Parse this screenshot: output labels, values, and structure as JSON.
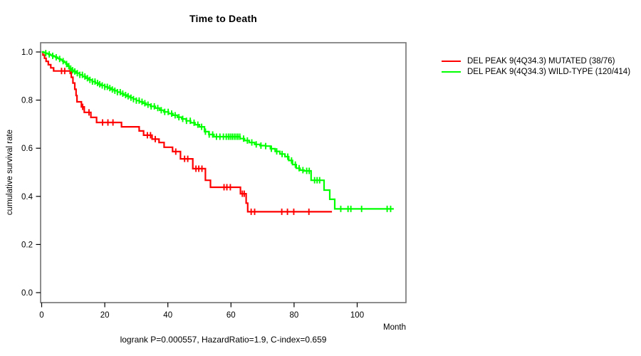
{
  "chart_data": {
    "type": "line",
    "subtype": "kaplan-meier-step",
    "title": "Time to Death",
    "xlabel": "Month",
    "ylabel": "cumulative survival rate",
    "footer": "logrank P=0.000557, HazardRatio=1.9, C-index=0.659",
    "xticks": [
      0,
      20,
      40,
      60,
      80,
      100
    ],
    "ytick_labels": [
      "0.0",
      "0.2",
      "0.4",
      "0.6",
      "0.8",
      "1.0"
    ],
    "yticks": [
      0.0,
      0.2,
      0.4,
      0.6,
      0.8,
      1.0
    ],
    "xlim": [
      0,
      115.5
    ],
    "ylim": [
      -0.04,
      1.04
    ],
    "grid": false,
    "legend_position": "right-outside",
    "axis_color": "#7a7a7a",
    "tick_color": "#000000",
    "series": [
      {
        "name": "DEL PEAK 9(4Q34.3) MUTATED (38/76)",
        "color": "#ff0000",
        "end_time": 92,
        "steps": [
          [
            0,
            1.0
          ],
          [
            0.4,
            0.987
          ],
          [
            0.9,
            0.974
          ],
          [
            1.4,
            0.961
          ],
          [
            2.1,
            0.947
          ],
          [
            2.9,
            0.934
          ],
          [
            3.8,
            0.921
          ],
          [
            9.4,
            0.895
          ],
          [
            9.9,
            0.871
          ],
          [
            10.5,
            0.845
          ],
          [
            10.9,
            0.819
          ],
          [
            11.2,
            0.793
          ],
          [
            12.6,
            0.772
          ],
          [
            13.5,
            0.749
          ],
          [
            15.6,
            0.728
          ],
          [
            17.4,
            0.707
          ],
          [
            25.3,
            0.689
          ],
          [
            30.9,
            0.672
          ],
          [
            32.3,
            0.654
          ],
          [
            35.0,
            0.638
          ],
          [
            37.2,
            0.624
          ],
          [
            38.8,
            0.604
          ],
          [
            41.5,
            0.586
          ],
          [
            44.0,
            0.556
          ],
          [
            47.9,
            0.515
          ],
          [
            51.9,
            0.467
          ],
          [
            53.5,
            0.438
          ],
          [
            63.0,
            0.411
          ],
          [
            64.8,
            0.372
          ],
          [
            65.3,
            0.336
          ]
        ],
        "censor_times": [
          6.3,
          7.3,
          9.0,
          13.0,
          15.0,
          19.3,
          21.0,
          22.6,
          33.5,
          34.5,
          36.0,
          42.5,
          45.3,
          46.3,
          48.9,
          49.8,
          50.8,
          57.8,
          58.7,
          59.8,
          63.6,
          64.2,
          66.4,
          67.5,
          76.1,
          77.9,
          79.9,
          84.7
        ]
      },
      {
        "name": "DEL PEAK 9(4Q34.3) WILD-TYPE (120/414)",
        "color": "#00ff00",
        "end_time": 111.6,
        "steps": [
          [
            0,
            1.0
          ],
          [
            0.6,
            0.998
          ],
          [
            1.1,
            0.995
          ],
          [
            1.7,
            0.993
          ],
          [
            2.2,
            0.99
          ],
          [
            2.8,
            0.987
          ],
          [
            3.3,
            0.984
          ],
          [
            3.9,
            0.981
          ],
          [
            4.4,
            0.978
          ],
          [
            5.0,
            0.974
          ],
          [
            5.5,
            0.971
          ],
          [
            6.1,
            0.967
          ],
          [
            6.6,
            0.962
          ],
          [
            7.2,
            0.957
          ],
          [
            7.7,
            0.95
          ],
          [
            8.2,
            0.941
          ],
          [
            8.7,
            0.931
          ],
          [
            9.4,
            0.924
          ],
          [
            10.0,
            0.919
          ],
          [
            11.0,
            0.912
          ],
          [
            12.0,
            0.905
          ],
          [
            13.0,
            0.898
          ],
          [
            14.0,
            0.891
          ],
          [
            15.0,
            0.884
          ],
          [
            16.0,
            0.877
          ],
          [
            17.0,
            0.871
          ],
          [
            18.0,
            0.866
          ],
          [
            18.9,
            0.861
          ],
          [
            20.0,
            0.855
          ],
          [
            21.0,
            0.85
          ],
          [
            22.0,
            0.844
          ],
          [
            23.0,
            0.839
          ],
          [
            24.0,
            0.833
          ],
          [
            25.0,
            0.827
          ],
          [
            26.0,
            0.821
          ],
          [
            27.0,
            0.816
          ],
          [
            28.0,
            0.81
          ],
          [
            29.0,
            0.804
          ],
          [
            30.0,
            0.798
          ],
          [
            31.0,
            0.793
          ],
          [
            32.1,
            0.787
          ],
          [
            33.1,
            0.781
          ],
          [
            34.5,
            0.774
          ],
          [
            36.0,
            0.767
          ],
          [
            37.4,
            0.758
          ],
          [
            38.7,
            0.751
          ],
          [
            40.2,
            0.744
          ],
          [
            41.6,
            0.737
          ],
          [
            43.0,
            0.729
          ],
          [
            44.4,
            0.722
          ],
          [
            45.8,
            0.714
          ],
          [
            47.2,
            0.706
          ],
          [
            48.6,
            0.698
          ],
          [
            50.0,
            0.689
          ],
          [
            51.6,
            0.669
          ],
          [
            53.0,
            0.657
          ],
          [
            54.6,
            0.648
          ],
          [
            62.9,
            0.64
          ],
          [
            64.3,
            0.632
          ],
          [
            65.8,
            0.624
          ],
          [
            67.5,
            0.616
          ],
          [
            69.2,
            0.611
          ],
          [
            71.0,
            0.609
          ],
          [
            72.5,
            0.598
          ],
          [
            74.0,
            0.587
          ],
          [
            75.5,
            0.576
          ],
          [
            77.1,
            0.565
          ],
          [
            78.3,
            0.549
          ],
          [
            79.5,
            0.532
          ],
          [
            80.7,
            0.517
          ],
          [
            81.9,
            0.509
          ],
          [
            83.2,
            0.506
          ],
          [
            85.4,
            0.467
          ],
          [
            89.5,
            0.426
          ],
          [
            91.3,
            0.388
          ],
          [
            92.9,
            0.348
          ]
        ],
        "censor_times": [
          1.3,
          2.4,
          3.5,
          4.6,
          5.7,
          6.8,
          7.9,
          8.6,
          9.2,
          9.8,
          10.5,
          11.3,
          12.1,
          12.9,
          13.7,
          14.5,
          15.3,
          16.1,
          16.9,
          17.7,
          18.4,
          19.2,
          20.0,
          20.8,
          21.6,
          22.4,
          23.2,
          24.0,
          24.9,
          25.7,
          26.6,
          27.4,
          28.3,
          29.1,
          30.0,
          30.9,
          31.8,
          32.7,
          33.7,
          34.7,
          35.7,
          36.8,
          37.9,
          39.0,
          40.1,
          41.2,
          42.3,
          43.5,
          44.7,
          45.9,
          47.1,
          48.3,
          49.5,
          50.7,
          51.9,
          53.1,
          54.2,
          55.4,
          56.5,
          57.6,
          58.5,
          59.2,
          59.8,
          60.4,
          61.0,
          61.6,
          62.2,
          62.8,
          64.0,
          65.2,
          66.6,
          68.0,
          69.5,
          71.0,
          72.8,
          74.5,
          76.2,
          78.0,
          79.2,
          80.4,
          81.6,
          82.8,
          84.0,
          84.8,
          86.5,
          87.3,
          88.1,
          94.8,
          97.1,
          98.0,
          101.4,
          109.5,
          110.6
        ]
      }
    ]
  }
}
